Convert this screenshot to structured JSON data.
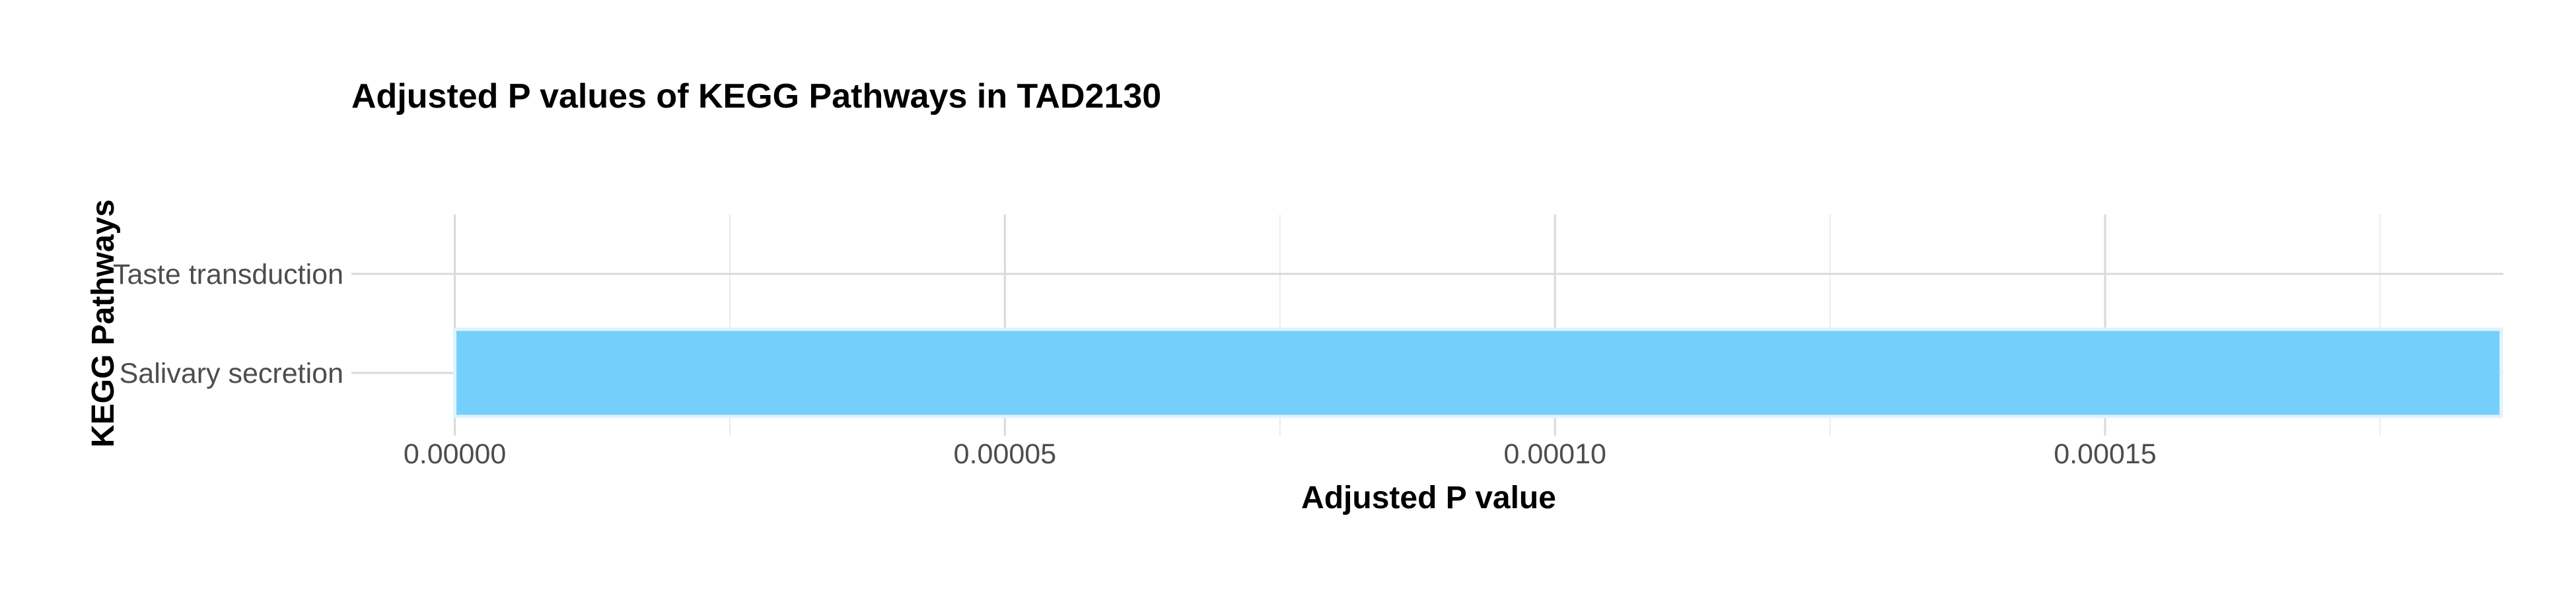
{
  "chart_data": {
    "type": "bar",
    "orientation": "horizontal",
    "title": "Adjusted P values of KEGG Pathways in TAD2130",
    "xlabel": "Adjusted P value",
    "ylabel": "KEGG Pathways",
    "categories": [
      "Salivary secretion",
      "Taste transduction"
    ],
    "values": [
      0.000186,
      null
    ],
    "xlim": [
      -9.4e-06,
      0.0001862
    ],
    "xticks": [
      0.0,
      5e-05,
      0.0001,
      0.00015
    ],
    "xtick_labels": [
      "0.00000",
      "0.00005",
      "0.00010",
      "0.00015"
    ],
    "grid": true,
    "legend": "none",
    "bar_color": "#74cffa",
    "bar_edge_color": "#dff3fd"
  }
}
